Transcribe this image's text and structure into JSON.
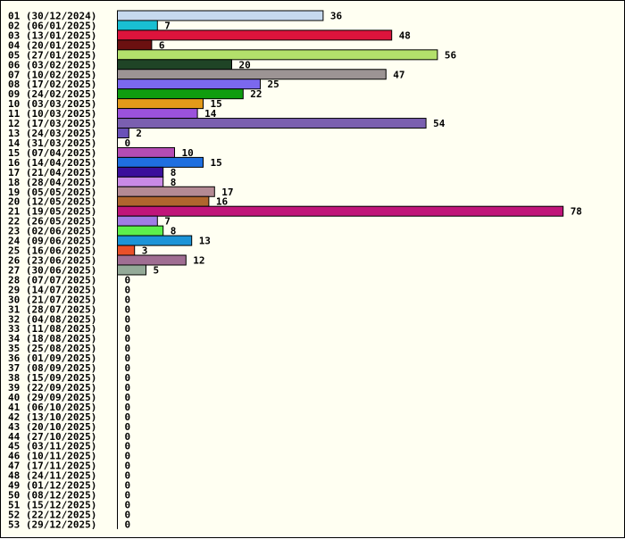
{
  "chart_data": {
    "type": "bar",
    "orientation": "horizontal",
    "categories": [
      "01 (30/12/2024)",
      "02 (06/01/2025)",
      "03 (13/01/2025)",
      "04 (20/01/2025)",
      "05 (27/01/2025)",
      "06 (03/02/2025)",
      "07 (10/02/2025)",
      "08 (17/02/2025)",
      "09 (24/02/2025)",
      "10 (03/03/2025)",
      "11 (10/03/2025)",
      "12 (17/03/2025)",
      "13 (24/03/2025)",
      "14 (31/03/2025)",
      "15 (07/04/2025)",
      "16 (14/04/2025)",
      "17 (21/04/2025)",
      "18 (28/04/2025)",
      "19 (05/05/2025)",
      "20 (12/05/2025)",
      "21 (19/05/2025)",
      "22 (26/05/2025)",
      "23 (02/06/2025)",
      "24 (09/06/2025)",
      "25 (16/06/2025)",
      "26 (23/06/2025)",
      "27 (30/06/2025)",
      "28 (07/07/2025)",
      "29 (14/07/2025)",
      "30 (21/07/2025)",
      "31 (28/07/2025)",
      "32 (04/08/2025)",
      "33 (11/08/2025)",
      "34 (18/08/2025)",
      "35 (25/08/2025)",
      "36 (01/09/2025)",
      "37 (08/09/2025)",
      "38 (15/09/2025)",
      "39 (22/09/2025)",
      "40 (29/09/2025)",
      "41 (06/10/2025)",
      "42 (13/10/2025)",
      "43 (20/10/2025)",
      "44 (27/10/2025)",
      "45 (03/11/2025)",
      "46 (10/11/2025)",
      "47 (17/11/2025)",
      "48 (24/11/2025)",
      "49 (01/12/2025)",
      "50 (08/12/2025)",
      "51 (15/12/2025)",
      "52 (22/12/2025)",
      "53 (29/12/2025)"
    ],
    "values": [
      36,
      7,
      48,
      6,
      56,
      20,
      47,
      25,
      22,
      15,
      14,
      54,
      2,
      0,
      10,
      15,
      8,
      8,
      17,
      16,
      78,
      7,
      8,
      13,
      3,
      12,
      5,
      0,
      0,
      0,
      0,
      0,
      0,
      0,
      0,
      0,
      0,
      0,
      0,
      0,
      0,
      0,
      0,
      0,
      0,
      0,
      0,
      0,
      0,
      0,
      0,
      0,
      0
    ],
    "colors": [
      "#c6d9ee",
      "#19bfd2",
      "#dc143c",
      "#6b1010",
      "#b3e06b",
      "#1f4426",
      "#9c9494",
      "#7b68ee",
      "#0f9d0f",
      "#e39a1a",
      "#9b52dc",
      "#7a5fb0",
      "#6a52b8",
      "#ffffff",
      "#b44cb4",
      "#1f6fe0",
      "#3b0f9b",
      "#c98ae6",
      "#b48a94",
      "#b0662e",
      "#c0157a",
      "#a07de6",
      "#5cf04c",
      "#1c94d8",
      "#e8502a",
      "#a06e93",
      "#94aa98"
    ],
    "xlim": [
      0,
      78
    ],
    "title": "",
    "xlabel": "",
    "ylabel": "",
    "legend": "none",
    "grid": false,
    "value_labels": true
  }
}
